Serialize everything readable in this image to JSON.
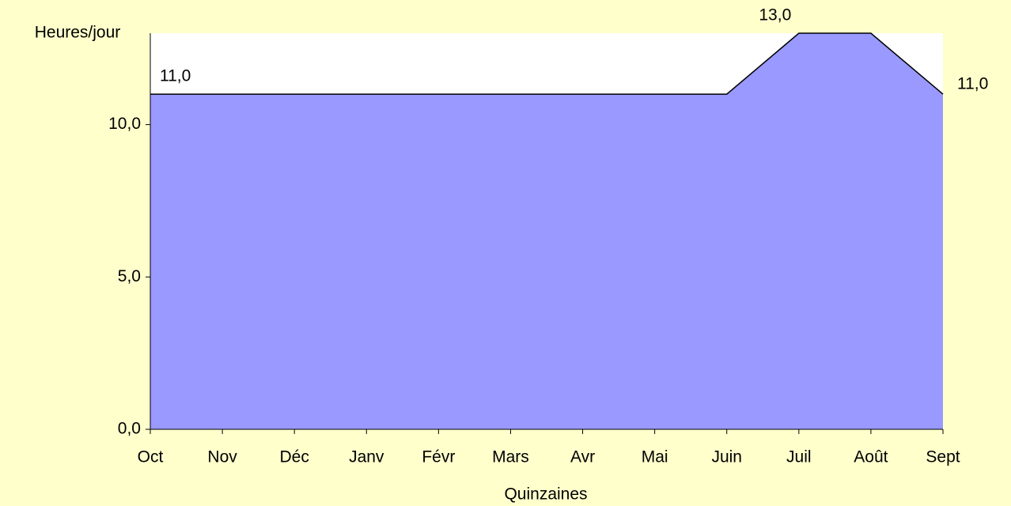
{
  "chart_data": {
    "type": "area",
    "y_label": "Heures/jour",
    "x_label": "Quinzaines",
    "categories": [
      "Oct",
      "Nov",
      "Déc",
      "Janv",
      "Févr",
      "Mars",
      "Avr",
      "Mai",
      "Juin",
      "Juil",
      "Août",
      "Sept"
    ],
    "values": [
      11,
      11,
      11,
      11,
      11,
      11,
      11,
      11,
      11,
      13,
      13,
      11
    ],
    "value_labels": [
      "11,0",
      null,
      null,
      null,
      null,
      null,
      null,
      null,
      null,
      "13,0",
      null,
      "11,0"
    ],
    "color": "#9999FF",
    "line_color": "#000000",
    "ylim": [
      0,
      13
    ],
    "yticks": [
      {
        "value": 0,
        "label": "0,0"
      },
      {
        "value": 5,
        "label": "5,0"
      },
      {
        "value": 10,
        "label": "10,0"
      }
    ]
  }
}
